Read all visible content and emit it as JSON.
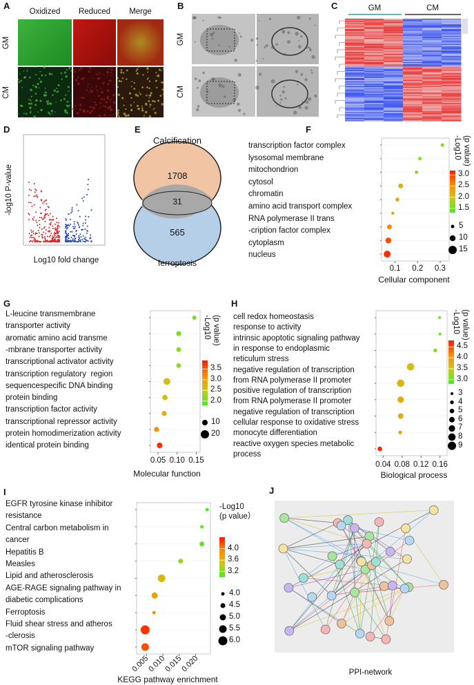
{
  "panels": {
    "a": {
      "letter": "A",
      "columns": [
        "Oxidized",
        "Reduced",
        "Merge"
      ],
      "rows": [
        "GM",
        "CM"
      ]
    },
    "b": {
      "letter": "B",
      "rows": [
        "GM",
        "CM"
      ]
    },
    "c": {
      "letter": "C",
      "groups": [
        "GM",
        "CM"
      ]
    },
    "d": {
      "letter": "D",
      "x_label": "Log10 fold change",
      "y_label": "-log10 P-value"
    },
    "e": {
      "letter": "E",
      "sets": [
        "Calcification",
        "ferroptosis"
      ],
      "counts": [
        1708,
        31,
        565
      ]
    },
    "j": {
      "letter": "J",
      "caption": "PPI-network"
    }
  },
  "chart_data": [
    {
      "panel": "F",
      "type": "dot",
      "x_label": "Cellular component",
      "legend_title": "-Log10\n(p value)",
      "categories": [
        "transcription factor complex",
        "lysosomal membrane",
        "mitochondrion",
        "cytosol",
        "chromatin",
        "amino acid transport complex",
        "RNA polymerase II trans\n-cription factor complex",
        "cytoplasm",
        "nucleus"
      ],
      "values": [
        0.31,
        0.21,
        0.195,
        0.125,
        0.11,
        0.09,
        0.075,
        0.07,
        0.065
      ],
      "sizes": [
        5,
        5,
        5,
        8,
        6,
        4,
        8,
        10,
        12
      ],
      "color_values": [
        1.5,
        1.6,
        1.7,
        2.2,
        2.3,
        2.4,
        2.6,
        2.9,
        3.1
      ],
      "xlim": [
        0.04,
        0.34
      ],
      "xticks": [
        0.1,
        0.2,
        0.3
      ],
      "clim": [
        1.3,
        3.2
      ],
      "cticks": [
        {
          "value": 3,
          "label": "3.0"
        },
        2.5,
        {
          "value": 2,
          "label": "2.0"
        },
        1.5
      ],
      "colormap": [
        "#44ee22",
        "#c8c81e",
        "#ff8c00",
        "#ff1a00"
      ],
      "size_legend": [
        5,
        10,
        15
      ]
    },
    {
      "panel": "G",
      "type": "dot",
      "x_label": "Molecular function",
      "legend_title": "-Log10\n(p value)",
      "categories": [
        "L-leucine transmembrane\ntransporter activity",
        "aromatic amino acid transme\n-mbrane transporter activity",
        "transcriptional activator activity",
        "transcription regulatory  region\nsequencespecific DNA binding",
        "protein binding",
        "transcription factor activity",
        "transcriptional repressor activity",
        "protein homodimerization activity",
        "identical protein binding"
      ],
      "values": [
        0.145,
        0.104,
        0.104,
        0.104,
        0.073,
        0.068,
        0.066,
        0.046,
        0.054
      ],
      "sizes": [
        5,
        8,
        7,
        7,
        15,
        9,
        8,
        8,
        10
      ],
      "color_values": [
        2.0,
        2.1,
        2.2,
        2.2,
        2.6,
        2.7,
        2.8,
        3.2,
        3.8
      ],
      "xlim": [
        0.03,
        0.16
      ],
      "xticks": [
        0.05,
        {
          "value": 0.1,
          "label": "0.10"
        },
        0.15
      ],
      "clim": [
        1.8,
        3.9
      ],
      "cticks": [
        3.5,
        {
          "value": 3,
          "label": "3.0"
        },
        2.5,
        {
          "value": 2,
          "label": "2.0"
        }
      ],
      "colormap": [
        "#44ee22",
        "#c8c81e",
        "#ff8c00",
        "#ff1a00"
      ],
      "size_legend": [
        10,
        20
      ]
    },
    {
      "panel": "H",
      "type": "dot",
      "x_label": "Biological process",
      "legend_title": "-Log10\n(p value)",
      "categories": [
        "cell redox homeostasis",
        "response to activity",
        "intrinsic apoptotic signaling pathway\nin response to endoplasmic\nreticulum stress",
        "negative regulation of transcription\nfrom RNA polymerase II promoter",
        "positive regulation of transcription\nfrom RNA polymerase II promoter",
        "negative regulation of transcription",
        "cellular response to oxidative stress",
        "monocyte differentiation",
        "reactive oxygen species metabolic\nprocess"
      ],
      "values": [
        0.159,
        0.16,
        0.15,
        0.098,
        0.077,
        0.077,
        0.077,
        0.076,
        0.033
      ],
      "sizes": [
        3,
        3,
        4,
        8,
        8,
        7,
        6,
        4,
        5
      ],
      "color_values": [
        3.0,
        3.0,
        3.1,
        3.6,
        3.7,
        3.8,
        3.8,
        3.9,
        4.7
      ],
      "xlim": [
        0.025,
        0.175
      ],
      "xticks": [
        0.04,
        0.08,
        0.12,
        0.16
      ],
      "clim": [
        2.8,
        4.8
      ],
      "cticks": [
        4.5,
        {
          "value": 4,
          "label": "4.0"
        },
        3.5,
        {
          "value": 3,
          "label": "3.0"
        }
      ],
      "colormap": [
        "#44ee22",
        "#c8c81e",
        "#ff8c00",
        "#ff1a00"
      ],
      "size_legend": [
        3,
        4,
        5,
        6,
        7,
        8,
        9
      ]
    },
    {
      "panel": "I",
      "type": "dot",
      "x_label": "KEGG pathway enrichment",
      "legend_title": "-Log10\n(p value）",
      "categories": [
        "EGFR tyrosine kinase inhibitor\nresistance",
        "Central carbon metabolism in\ncancer",
        "Hepatitis B",
        "Measles",
        "Lipid and atherosclerosis",
        "AGE-RAGE signaling pathway in\ndiabetic complications",
        "Ferroptosis",
        "Fluid shear stress and atheros\n-clerosis",
        "mTOR signaling pathway"
      ],
      "values": [
        0.0235,
        0.0219,
        0.0219,
        0.0154,
        0.0096,
        0.0075,
        0.0073,
        0.0046,
        0.0046
      ],
      "sizes": [
        4.0,
        4.0,
        4.5,
        4.5,
        5.5,
        5.0,
        4.0,
        6.0,
        5.5
      ],
      "color_values": [
        3.0,
        3.1,
        3.1,
        3.3,
        3.6,
        3.8,
        3.9,
        4.3,
        4.2
      ],
      "xlim": [
        0.002,
        0.0245
      ],
      "xticks": [
        0.005,
        {
          "value": 0.01,
          "label": "0.010"
        },
        0.015,
        {
          "value": 0.02,
          "label": "0.020"
        }
      ],
      "clim": [
        3.0,
        4.4
      ],
      "cticks": [
        {
          "value": 4,
          "label": "4.0"
        },
        3.6,
        3.2
      ],
      "colormap": [
        "#44ee22",
        "#c8c81e",
        "#ff8c00",
        "#ff1a00"
      ],
      "size_legend": [
        {
          "value": 4,
          "label": "4.0"
        },
        4.5,
        {
          "value": 5,
          "label": "5.0"
        },
        5.5,
        {
          "value": 6,
          "label": "6.0"
        }
      ]
    }
  ]
}
